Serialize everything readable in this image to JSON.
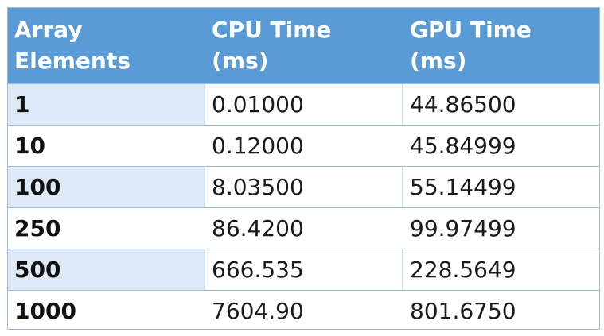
{
  "headers": {
    "col1": [
      "Array",
      "Elements"
    ],
    "col2": [
      "CPU Time",
      "(ms)"
    ],
    "col3": [
      "GPU Time",
      "(ms)"
    ]
  },
  "rows": [
    {
      "elements": "1",
      "cpu": "0.01000",
      "gpu": "44.86500"
    },
    {
      "elements": "10",
      "cpu": "0.12000",
      "gpu": "45.84999"
    },
    {
      "elements": "100",
      "cpu": "8.03500",
      "gpu": "55.14499"
    },
    {
      "elements": "250",
      "cpu": "86.4200",
      "gpu": "99.97499"
    },
    {
      "elements": "500",
      "cpu": "666.535",
      "gpu": "228.5649"
    },
    {
      "elements": "1000",
      "cpu": "7604.90",
      "gpu": "801.6750"
    }
  ],
  "colors": {
    "header_bg": "#5b9bd5",
    "header_text": "#ffffff",
    "alt_row_first_cell": "#dde9f6",
    "grid": "#9bbbe0"
  }
}
